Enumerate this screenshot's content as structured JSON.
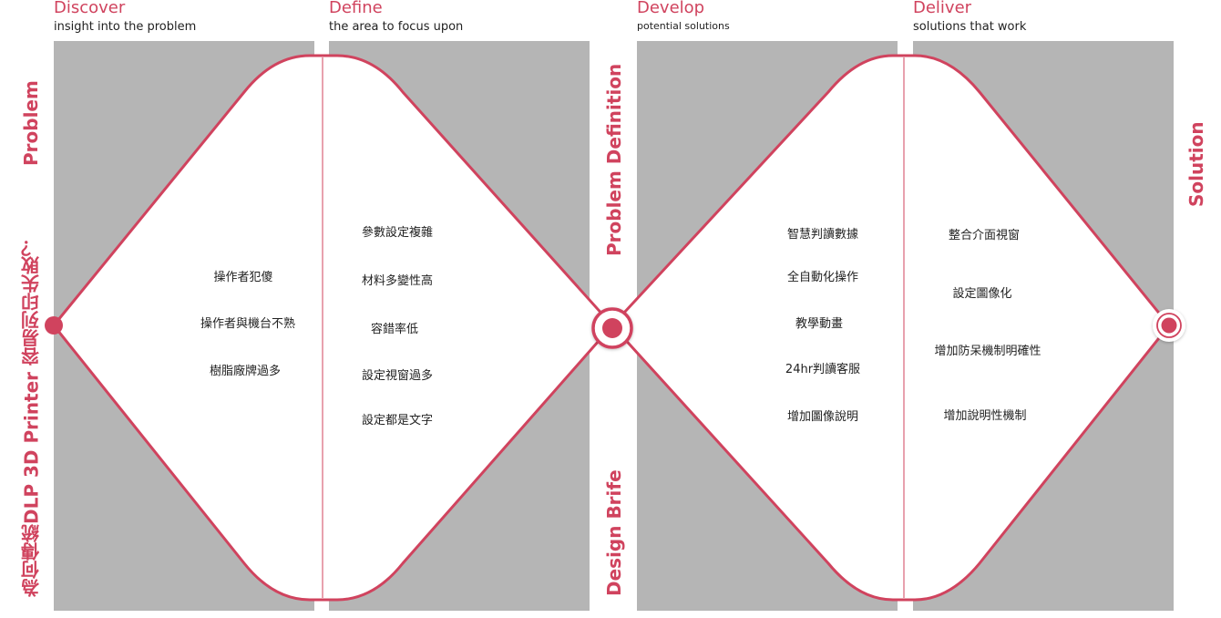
{
  "phases": [
    {
      "title": "Discover",
      "subtitle": "insight into the problem"
    },
    {
      "title": "Define",
      "subtitle": "the area to focus upon"
    },
    {
      "title": "Develop",
      "subtitle": "potential solutions"
    },
    {
      "title": "Deliver",
      "subtitle": "solutions that work"
    }
  ],
  "side_labels": {
    "problem": "Problem",
    "question": "為何傳統DLP 3D Printer 容易列印失敗？",
    "problem_definition": "Problem Definition",
    "design_brief": "Design Brife",
    "solution": "Solution"
  },
  "discover_items": [
    "操作者犯傻",
    "操作者與機台不熟",
    "樹脂廠牌過多"
  ],
  "define_items": [
    "參數設定複雜",
    "材料多變性高",
    "容錯率低",
    "設定視窗過多",
    "設定都是文字"
  ],
  "develop_items": [
    "智慧判讀數據",
    "全自動化操作",
    "教學動畫",
    "24hr判讀客服",
    "增加圖像說明"
  ],
  "deliver_items": [
    "整合介面視窗",
    "設定圖像化",
    "增加防呆機制明確性",
    "增加說明性機制"
  ],
  "colors": {
    "accent": "#d0435e",
    "panel": "#b5b5b5"
  }
}
